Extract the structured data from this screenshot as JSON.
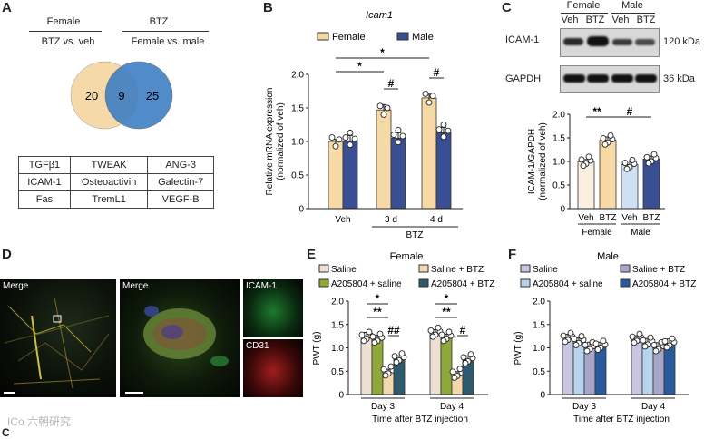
{
  "panels": {
    "a": "A",
    "b": "B",
    "c": "C",
    "d": "D",
    "e": "E",
    "f": "F",
    "g": "C"
  },
  "venn": {
    "left_header_top": "Female",
    "left_header_bottom": "BTZ vs. veh",
    "right_header_top": "BTZ",
    "right_header_bottom": "Female vs. male",
    "left_only": "20",
    "overlap": "9",
    "right_only": "25",
    "left_color": "#f5d9a8",
    "right_color": "#3f7fc4"
  },
  "genes": [
    [
      "TGFβ1",
      "TWEAK",
      "ANG-3"
    ],
    [
      "ICAM-1",
      "Osteoactivin",
      "Galectin-7"
    ],
    [
      "Fas",
      "TremL1",
      "VEGF-B"
    ]
  ],
  "western": {
    "group_female": "Female",
    "group_male": "Male",
    "lanes": [
      "Veh",
      "BTZ",
      "Veh",
      "BTZ"
    ],
    "band1_label": "ICAM-1",
    "band1_kda": "120 kDa",
    "band2_label": "GAPDH",
    "band2_kda": "36 kDa"
  },
  "micro": {
    "merge1": "Merge",
    "merge2": "Merge",
    "icam": "ICAM-1",
    "cd31": "CD31"
  },
  "watermark": "ICo 六朝研究",
  "colors": {
    "female": "#f7d9a6",
    "male": "#3a4f93",
    "saline": "#eedfd4",
    "saline_btz": "#f4d8ad",
    "a205_saline": "#8fa83a",
    "a205_btz": "#2f5a6e",
    "m_saline": "#c8c6e0",
    "m_saline_btz": "#a8a6c8",
    "m_a205_saline": "#b7d3ee",
    "m_a205_btz": "#2a5a9e"
  },
  "chart_data": [
    {
      "type": "bar",
      "title": "Icam1",
      "ylabel": "Relative mRNA expression (normalized of veh)",
      "xlabel": "BTZ",
      "categories": [
        "Veh",
        "3 d",
        "4 d"
      ],
      "ylim": [
        0,
        2.0
      ],
      "yticks": [
        "0",
        "0.5",
        "1.0",
        "1.5",
        "2.0"
      ],
      "legend": [
        "Female",
        "Male"
      ],
      "series": [
        {
          "name": "Female",
          "values": [
            1.0,
            1.47,
            1.65
          ],
          "errors": [
            0.03,
            0.08,
            0.07
          ]
        },
        {
          "name": "Male",
          "values": [
            1.01,
            1.05,
            1.13
          ],
          "errors": [
            0.08,
            0.08,
            0.08
          ]
        }
      ],
      "annotations": [
        "*",
        "*",
        "#",
        "#"
      ]
    },
    {
      "type": "bar",
      "ylabel": "ICAM-1/GAPDH (normalized of veh)",
      "categories": [
        "Veh",
        "BTZ",
        "Veh",
        "BTZ"
      ],
      "groups": [
        "Female",
        "Male"
      ],
      "ylim": [
        0,
        2.0
      ],
      "yticks": [
        "0",
        "0.5",
        "1.0",
        "1.5",
        "2.0"
      ],
      "values": [
        1.0,
        1.45,
        0.93,
        1.05
      ],
      "errors": [
        0.04,
        0.07,
        0.08,
        0.06
      ],
      "annotations": [
        "**",
        "#"
      ]
    },
    {
      "type": "bar",
      "title": "Female",
      "ylabel": "PWT (g)",
      "xlabel": "Time after BTZ injection",
      "categories": [
        "Day 3",
        "Day 4"
      ],
      "ylim": [
        0,
        2.0
      ],
      "yticks": [
        "0",
        "0.5",
        "1.0",
        "1.5",
        "2.0"
      ],
      "legend": [
        "Saline",
        "Saline + BTZ",
        "A205804 + saline",
        "A205804 + BTZ"
      ],
      "series": [
        {
          "name": "Saline",
          "values": [
            1.24,
            1.33
          ],
          "errors": [
            0.09,
            0.06
          ]
        },
        {
          "name": "A205804 + saline",
          "values": [
            1.2,
            1.24
          ],
          "errors": [
            0.07,
            0.05
          ]
        },
        {
          "name": "Saline + BTZ",
          "values": [
            0.5,
            0.45
          ],
          "errors": [
            0.04,
            0.04
          ]
        },
        {
          "name": "A205804 + BTZ",
          "values": [
            0.78,
            0.76
          ],
          "errors": [
            0.05,
            0.07
          ]
        }
      ],
      "annotations": [
        "*",
        "**",
        "##",
        "*",
        "**",
        "#"
      ]
    },
    {
      "type": "bar",
      "title": "Male",
      "ylabel": "PWT (g)",
      "xlabel": "Time after BTZ injection",
      "categories": [
        "Day 3",
        "Day 4"
      ],
      "ylim": [
        0,
        2.0
      ],
      "yticks": [
        "0",
        "0.5",
        "1.0",
        "1.5",
        "2.0"
      ],
      "legend": [
        "Saline",
        "Saline + BTZ",
        "A205804 + saline",
        "A205804 + BTZ"
      ],
      "series": [
        {
          "name": "Saline",
          "values": [
            1.22,
            1.2
          ],
          "errors": [
            0.07,
            0.06
          ]
        },
        {
          "name": "A205804 + saline",
          "values": [
            1.15,
            1.12
          ],
          "errors": [
            0.06,
            0.08
          ]
        },
        {
          "name": "Saline + BTZ",
          "values": [
            1.02,
            1.02
          ],
          "errors": [
            0.1,
            0.09
          ]
        },
        {
          "name": "A205804 + BTZ",
          "values": [
            1.05,
            1.1
          ],
          "errors": [
            0.07,
            0.09
          ]
        }
      ]
    }
  ]
}
